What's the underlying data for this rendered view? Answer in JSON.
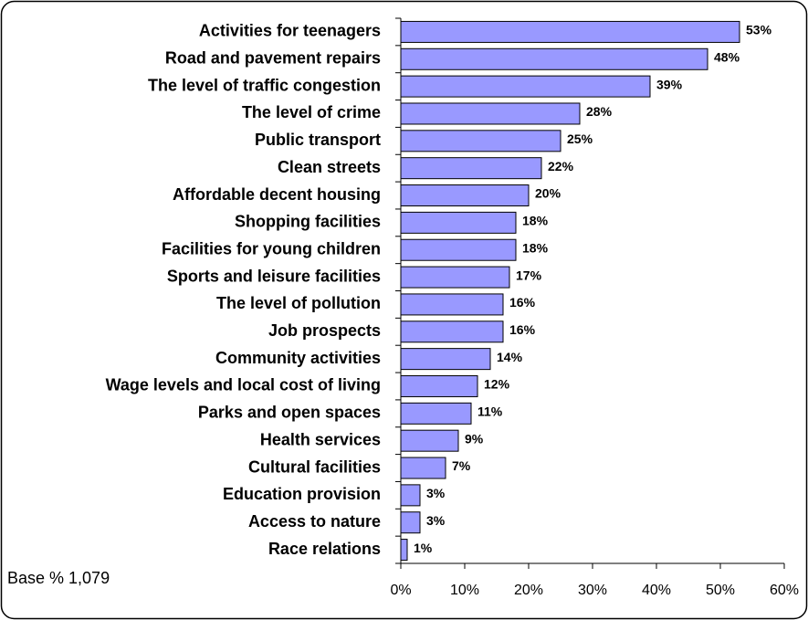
{
  "chart_data": {
    "type": "bar",
    "orientation": "horizontal",
    "annotation": "Base % 1,079",
    "categories": [
      "Activities for teenagers",
      "Road and pavement repairs",
      "The level of traffic congestion",
      "The level of crime",
      "Public transport",
      "Clean streets",
      "Affordable decent housing",
      "Shopping facilities",
      "Facilities for young children",
      "Sports and leisure facilities",
      "The level of pollution",
      "Job prospects",
      "Community activities",
      "Wage levels and local cost of living",
      "Parks and open spaces",
      "Health services",
      "Cultural facilities",
      "Education provision",
      "Access to nature",
      "Race relations"
    ],
    "values": [
      53,
      48,
      39,
      28,
      25,
      22,
      20,
      18,
      18,
      17,
      16,
      16,
      14,
      12,
      11,
      9,
      7,
      3,
      3,
      1
    ],
    "value_labels": [
      "53%",
      "48%",
      "39%",
      "28%",
      "25%",
      "22%",
      "20%",
      "18%",
      "18%",
      "17%",
      "16%",
      "16%",
      "14%",
      "12%",
      "11%",
      "9%",
      "7%",
      "3%",
      "3%",
      "1%"
    ],
    "color": "#9999ff",
    "xlim": [
      0,
      60
    ],
    "xticks": [
      {
        "value": 0,
        "label": "0%"
      },
      {
        "value": 10,
        "label": "10%"
      },
      {
        "value": 20,
        "label": "20%"
      },
      {
        "value": 30,
        "label": "30%"
      },
      {
        "value": 40,
        "label": "40%"
      },
      {
        "value": 50,
        "label": "50%"
      },
      {
        "value": 60,
        "label": "60%"
      }
    ],
    "grid": false
  }
}
